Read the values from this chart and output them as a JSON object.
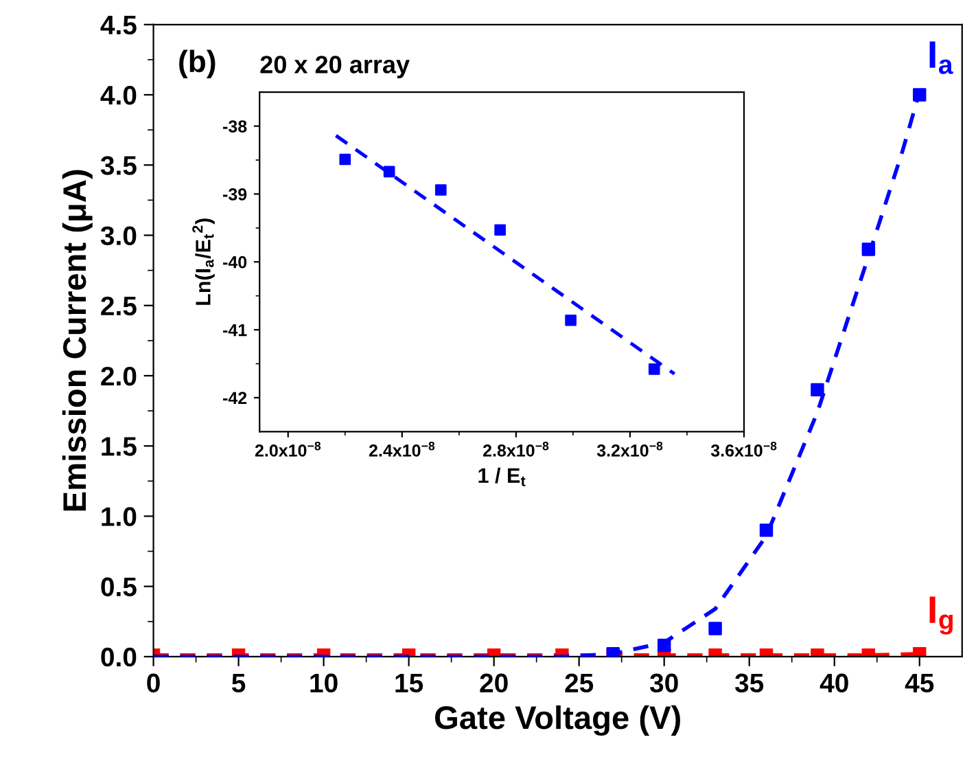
{
  "chart_data": [
    {
      "type": "scatter",
      "xlabel": "Gate Voltage (V)",
      "ylabel": "Emission Current (μA)",
      "annotations": [
        "(b)"
      ],
      "xlim": [
        0,
        47.5
      ],
      "ylim": [
        0,
        4.5
      ],
      "xticks": [
        0,
        {
          "value": 2.5,
          "label": null
        },
        5,
        {
          "value": 7.5,
          "label": null
        },
        10,
        {
          "value": 12.5,
          "label": null
        },
        15,
        {
          "value": 17.5,
          "label": null
        },
        20,
        {
          "value": 22.5,
          "label": null
        },
        25,
        {
          "value": 27.5,
          "label": null
        },
        30,
        {
          "value": 32.5,
          "label": null
        },
        35,
        {
          "value": 37.5,
          "label": null
        },
        40,
        {
          "value": 42.5,
          "label": null
        },
        45
      ],
      "yticks": [
        {
          "value": 0.0,
          "label": "0.0"
        },
        {
          "value": 0.25,
          "label": null
        },
        {
          "value": 0.5,
          "label": "0.5"
        },
        {
          "value": 0.75,
          "label": null
        },
        {
          "value": 1.0,
          "label": "1.0"
        },
        {
          "value": 1.25,
          "label": null
        },
        {
          "value": 1.5,
          "label": "1.5"
        },
        {
          "value": 1.75,
          "label": null
        },
        {
          "value": 2.0,
          "label": "2.0"
        },
        {
          "value": 2.25,
          "label": null
        },
        {
          "value": 2.5,
          "label": "2.5"
        },
        {
          "value": 2.75,
          "label": null
        },
        {
          "value": 3.0,
          "label": "3.0"
        },
        {
          "value": 3.25,
          "label": null
        },
        {
          "value": 3.5,
          "label": "3.5"
        },
        {
          "value": 3.75,
          "label": null
        },
        {
          "value": 4.0,
          "label": "4.0"
        },
        {
          "value": 4.25,
          "label": null
        },
        {
          "value": 4.5,
          "label": "4.5"
        }
      ],
      "grid": false,
      "legend": false,
      "series": [
        {
          "type": "line",
          "name": "I$_{g}$",
          "color": "#ff0000",
          "line_style": "dashed",
          "marker": "square",
          "x": [
            0,
            5,
            10,
            15,
            20,
            24,
            27,
            30,
            33,
            36,
            39,
            42,
            45
          ],
          "values": [
            0.01,
            0.01,
            0.01,
            0.01,
            0.01,
            0.01,
            0.01,
            0.01,
            0.01,
            0.01,
            0.01,
            0.01,
            0.02
          ]
        },
        {
          "type": "line",
          "color": "#0000ff",
          "line_style": "dashed",
          "marker": "none",
          "x": [
            0,
            10,
            20,
            24,
            27,
            30,
            33,
            36,
            39,
            42,
            44,
            45
          ],
          "values": [
            0.0,
            0.0,
            0.0,
            0.0,
            0.02,
            0.1,
            0.34,
            0.86,
            1.74,
            2.85,
            3.6,
            4.02
          ]
        },
        {
          "type": "scatter",
          "name": "I$_{a}$",
          "color": "#0000ff",
          "marker": "square",
          "x": [
            27,
            30,
            33,
            36,
            39,
            42,
            45
          ],
          "values": [
            0.02,
            0.08,
            0.2,
            0.9,
            1.9,
            2.9,
            4.0
          ]
        }
      ]
    },
    {
      "type": "scatter",
      "title": "20 x 20 array",
      "xlabel": "1 / E$_{t}$",
      "ylabel": "Ln(I$_{a}$/E$_{t}$$^{2}$)",
      "xlim": [
        1.9e-08,
        3.6e-08
      ],
      "ylim": [
        -42.5,
        -37.5
      ],
      "xticks": [
        {
          "value": 2e-08,
          "label": "2.0x10$^{−8}$"
        },
        {
          "value": 2.2e-08,
          "label": null
        },
        {
          "value": 2.4e-08,
          "label": "2.4x10$^{−8}$"
        },
        {
          "value": 2.6e-08,
          "label": null
        },
        {
          "value": 2.8e-08,
          "label": "2.8x10$^{−8}$"
        },
        {
          "value": 3e-08,
          "label": null
        },
        {
          "value": 3.2e-08,
          "label": "3.2x10$^{−8}$"
        },
        {
          "value": 3.4e-08,
          "label": null
        },
        {
          "value": 3.6e-08,
          "label": "3.6x10$^{−8}$"
        }
      ],
      "yticks": [
        {
          "value": -42,
          "label": "-42"
        },
        {
          "value": -41.5,
          "label": null
        },
        {
          "value": -41,
          "label": "-41"
        },
        {
          "value": -40.5,
          "label": null
        },
        {
          "value": -40,
          "label": "-40"
        },
        {
          "value": -39.5,
          "label": null
        },
        {
          "value": -39,
          "label": "-39"
        },
        {
          "value": -38.5,
          "label": null
        },
        {
          "value": -38,
          "label": "-38"
        }
      ],
      "grid": false,
      "legend": false,
      "series": [
        {
          "type": "scatter",
          "color": "#0000ff",
          "marker": "square",
          "x": [
            2.2e-08,
            2.355e-08,
            2.536e-08,
            2.744e-08,
            2.992e-08,
            3.285e-08
          ],
          "values": [
            -38.49,
            -38.67,
            -38.94,
            -39.53,
            -40.86,
            -41.58
          ]
        },
        {
          "type": "line",
          "color": "#0000ff",
          "line_style": "dashed",
          "marker": "none",
          "x": [
            2.168e-08,
            3.356e-08
          ],
          "values": [
            -38.14,
            -41.65
          ]
        }
      ]
    }
  ]
}
